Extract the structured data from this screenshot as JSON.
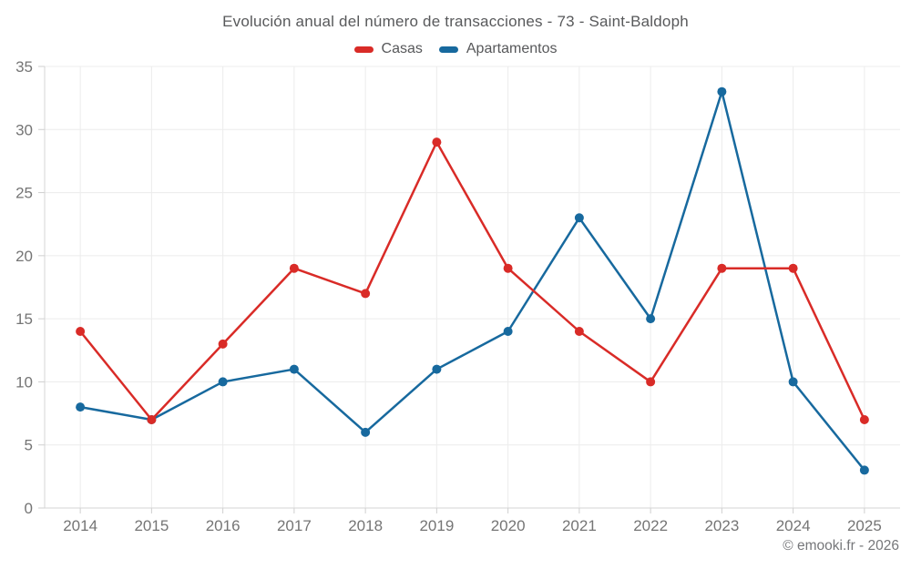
{
  "title": "Evolución anual del número de transacciones - 73 - Saint-Baldoph",
  "footer": "© emooki.fr - 2026",
  "colors": {
    "casas": "#d92b27",
    "apartamentos": "#17699e",
    "grid": "#ececec",
    "axis": "#d4d4d4",
    "tick": "#cfcfcf",
    "tick_label": "#757575"
  },
  "chart_data": {
    "type": "line",
    "categories": [
      "2014",
      "2015",
      "2016",
      "2017",
      "2018",
      "2019",
      "2020",
      "2021",
      "2022",
      "2023",
      "2024",
      "2025"
    ],
    "series": [
      {
        "name": "Casas",
        "color": "#d92b27",
        "values": [
          14,
          7,
          13,
          19,
          17,
          29,
          19,
          14,
          10,
          19,
          19,
          7
        ]
      },
      {
        "name": "Apartamentos",
        "color": "#17699e",
        "values": [
          8,
          7,
          10,
          11,
          6,
          11,
          14,
          23,
          15,
          33,
          10,
          3
        ]
      }
    ],
    "title": "Evolución anual del número de transacciones - 73 - Saint-Baldoph",
    "xlabel": "",
    "ylabel": "",
    "ylim": [
      0,
      35
    ],
    "ytick_step": 5,
    "yticks": [
      0,
      5,
      10,
      15,
      20,
      25,
      30,
      35
    ],
    "grid": true,
    "legend_position": "top",
    "annotation": "© emooki.fr - 2026"
  }
}
